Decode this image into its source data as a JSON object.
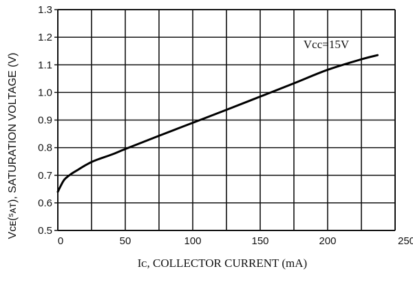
{
  "chart_data": {
    "type": "line",
    "title": "",
    "xlabel": "Iᴄ, COLLECTOR CURRENT (mA)",
    "ylabel": "Vᴄᴇ(ˢᴀᴛ), SATURATION VOLTAGE (V)",
    "xlim": [
      0,
      250
    ],
    "ylim": [
      0.5,
      1.3
    ],
    "x_ticks": [
      0,
      50,
      100,
      150,
      200,
      250
    ],
    "y_ticks": [
      0.5,
      0.6,
      0.7,
      0.8,
      0.9,
      1.0,
      1.1,
      1.2,
      1.3
    ],
    "x_tick_labels": [
      "0",
      "50",
      "100",
      "150",
      "200",
      "250"
    ],
    "y_tick_labels": [
      "0.5",
      "0.6",
      "0.7",
      "0.8",
      "0.9",
      "1.0",
      "1.1",
      "1.2",
      "1.3"
    ],
    "x_grid_step": 25,
    "grid": true,
    "annotations": [
      {
        "text": "Vcc=15V",
        "x": 200,
        "y": 1.13
      }
    ],
    "series": [
      {
        "points": [
          [
            0,
            0.64
          ],
          [
            2,
            0.66
          ],
          [
            5,
            0.685
          ],
          [
            10,
            0.705
          ],
          [
            15,
            0.72
          ],
          [
            20,
            0.735
          ],
          [
            25,
            0.748
          ],
          [
            30,
            0.758
          ],
          [
            40,
            0.775
          ],
          [
            50,
            0.795
          ],
          [
            75,
            0.843
          ],
          [
            100,
            0.89
          ],
          [
            125,
            0.937
          ],
          [
            150,
            0.985
          ],
          [
            175,
            1.033
          ],
          [
            200,
            1.082
          ],
          [
            225,
            1.12
          ],
          [
            237,
            1.135
          ]
        ]
      }
    ]
  }
}
